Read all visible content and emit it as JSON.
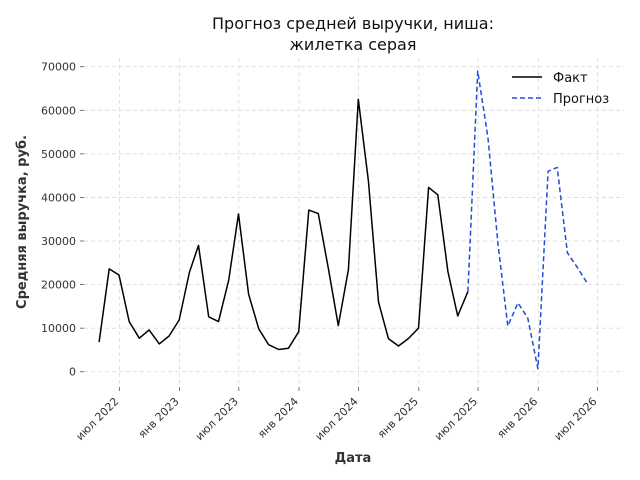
{
  "chart_data": {
    "type": "line",
    "title_lines": [
      "Прогноз средней выручки, ниша:",
      "жилетка серая"
    ],
    "xlabel": "Дата",
    "ylabel": "Средняя выручка, руб.",
    "xlim": [
      "2022-03-15",
      "2026-09-20"
    ],
    "ylim": [
      -3500,
      72000
    ],
    "yticks": [
      0,
      10000,
      20000,
      30000,
      40000,
      50000,
      60000,
      70000
    ],
    "xticks": [
      {
        "date": "2022-07-01",
        "label": "июл 2022"
      },
      {
        "date": "2023-01-01",
        "label": "янв 2023"
      },
      {
        "date": "2023-07-01",
        "label": "июл 2023"
      },
      {
        "date": "2024-01-01",
        "label": "янв 2024"
      },
      {
        "date": "2024-07-01",
        "label": "июл 2024"
      },
      {
        "date": "2025-01-01",
        "label": "янв 2025"
      },
      {
        "date": "2025-07-01",
        "label": "июл 2025"
      },
      {
        "date": "2026-01-01",
        "label": "янв 2026"
      },
      {
        "date": "2026-07-01",
        "label": "июл 2026"
      }
    ],
    "grid": true,
    "legend_position": "top-right",
    "series": [
      {
        "name": "Факт",
        "color": "#000000",
        "style": "solid",
        "points": [
          [
            "2022-04-30",
            6800
          ],
          [
            "2022-05-31",
            23600
          ],
          [
            "2022-06-30",
            22200
          ],
          [
            "2022-07-31",
            11500
          ],
          [
            "2022-08-31",
            7700
          ],
          [
            "2022-09-30",
            9600
          ],
          [
            "2022-10-31",
            6400
          ],
          [
            "2022-11-30",
            8200
          ],
          [
            "2022-12-31",
            11900
          ],
          [
            "2023-01-31",
            22800
          ],
          [
            "2023-02-28",
            29000
          ],
          [
            "2023-03-31",
            12600
          ],
          [
            "2023-04-30",
            11500
          ],
          [
            "2023-05-31",
            21000
          ],
          [
            "2023-06-30",
            36200
          ],
          [
            "2023-07-31",
            17800
          ],
          [
            "2023-08-31",
            9800
          ],
          [
            "2023-09-30",
            6200
          ],
          [
            "2023-10-31",
            5100
          ],
          [
            "2023-11-30",
            5400
          ],
          [
            "2023-12-31",
            9200
          ],
          [
            "2024-01-31",
            37100
          ],
          [
            "2024-02-29",
            36300
          ],
          [
            "2024-03-31",
            23500
          ],
          [
            "2024-04-30",
            10600
          ],
          [
            "2024-05-31",
            23400
          ],
          [
            "2024-06-30",
            62500
          ],
          [
            "2024-07-31",
            43800
          ],
          [
            "2024-08-31",
            16000
          ],
          [
            "2024-09-30",
            7600
          ],
          [
            "2024-10-31",
            5900
          ],
          [
            "2024-11-30",
            7600
          ],
          [
            "2024-12-31",
            10000
          ],
          [
            "2025-01-31",
            42300
          ],
          [
            "2025-02-28",
            40600
          ],
          [
            "2025-03-31",
            23000
          ],
          [
            "2025-04-30",
            12800
          ],
          [
            "2025-05-31",
            18400
          ]
        ]
      },
      {
        "name": "Прогноз",
        "color": "#1f4ed8",
        "style": "dashed",
        "points": [
          [
            "2025-05-31",
            18400
          ],
          [
            "2025-06-30",
            69000
          ],
          [
            "2025-07-31",
            53800
          ],
          [
            "2025-08-31",
            29300
          ],
          [
            "2025-09-30",
            10500
          ],
          [
            "2025-10-31",
            15800
          ],
          [
            "2025-11-30",
            12300
          ],
          [
            "2025-12-31",
            700
          ],
          [
            "2026-01-31",
            46000
          ],
          [
            "2026-02-28",
            46900
          ],
          [
            "2026-03-31",
            27300
          ],
          [
            "2026-04-30",
            24000
          ],
          [
            "2026-05-31",
            20300
          ]
        ]
      }
    ]
  }
}
